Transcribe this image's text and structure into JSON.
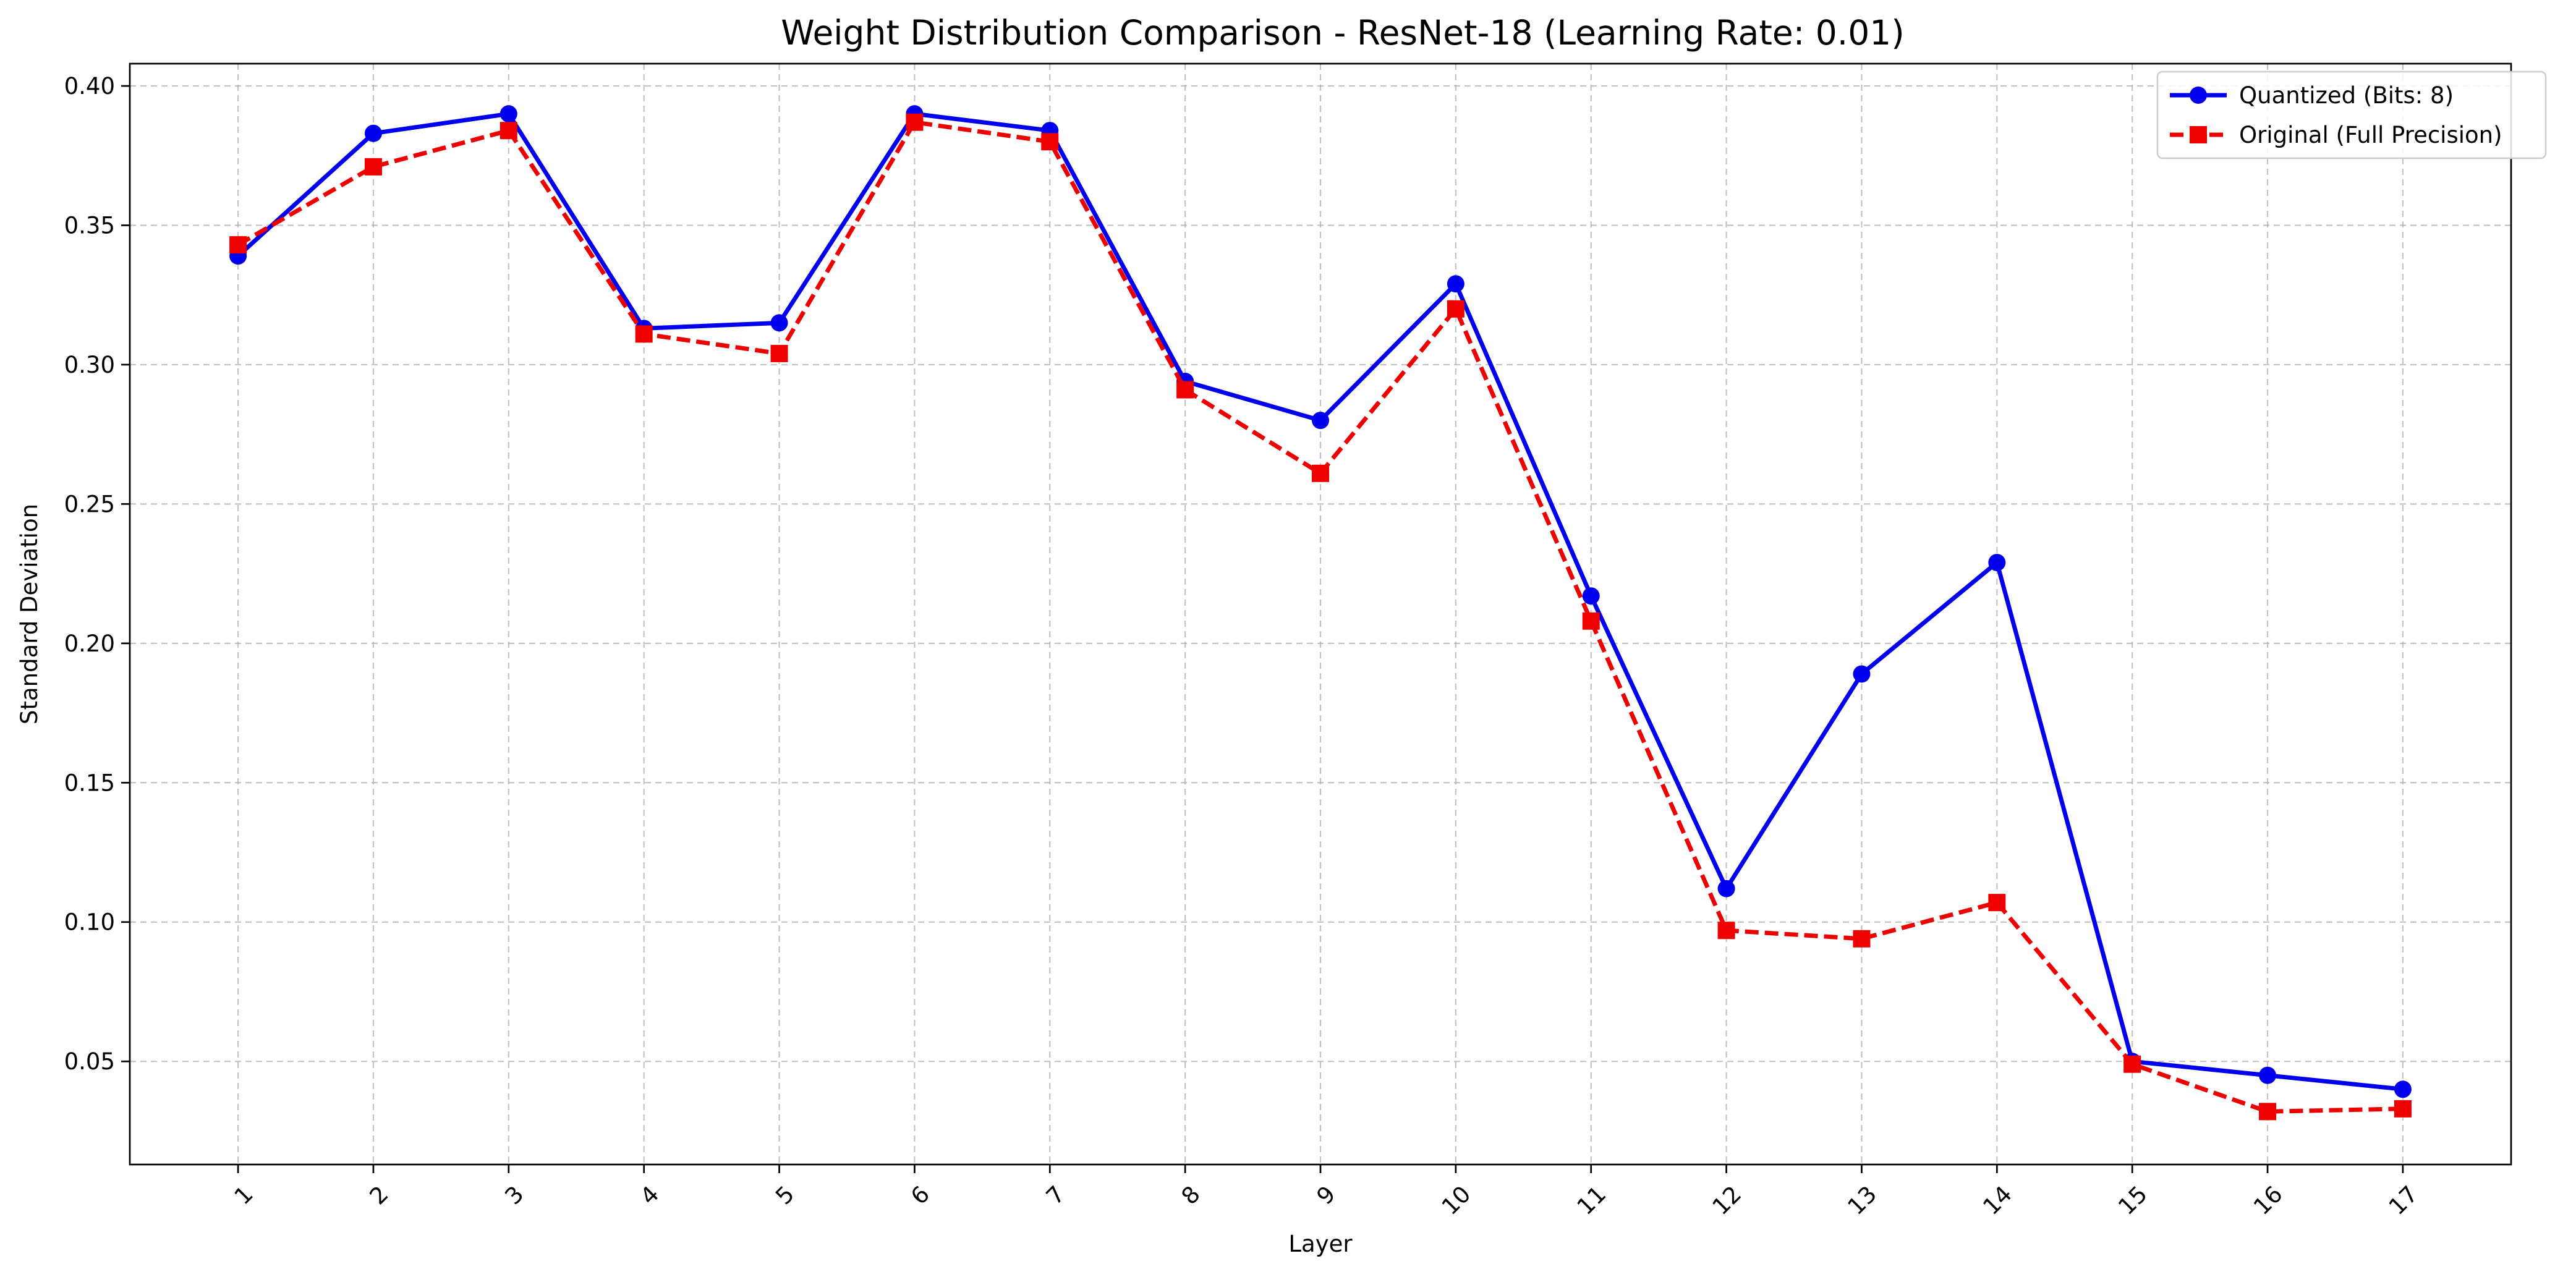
{
  "chart_data": {
    "type": "line",
    "title": "Weight Distribution Comparison - ResNet-18 (Learning Rate: 0.01)",
    "xlabel": "Layer",
    "ylabel": "Standard Deviation",
    "x": [
      1,
      2,
      3,
      4,
      5,
      6,
      7,
      8,
      9,
      10,
      11,
      12,
      13,
      14,
      15,
      16,
      17
    ],
    "x_tick_labels": [
      "1",
      "2",
      "3",
      "4",
      "5",
      "6",
      "7",
      "8",
      "9",
      "10",
      "11",
      "12",
      "13",
      "14",
      "15",
      "16",
      "17"
    ],
    "xlim": [
      0.2,
      17.8
    ],
    "ylim": [
      0.013,
      0.408
    ],
    "y_ticks": [
      0.05,
      0.1,
      0.15,
      0.2,
      0.25,
      0.3,
      0.35,
      0.4
    ],
    "y_tick_labels": [
      "0.05",
      "0.10",
      "0.15",
      "0.20",
      "0.25",
      "0.30",
      "0.35",
      "0.40"
    ],
    "grid": true,
    "legend_position": "top-right",
    "series": [
      {
        "name": "Quantized (Bits: 8)",
        "color": "#0000ee",
        "line_style": "solid",
        "marker": "circle",
        "values": [
          0.339,
          0.383,
          0.39,
          0.313,
          0.315,
          0.39,
          0.384,
          0.294,
          0.28,
          0.329,
          0.217,
          0.112,
          0.189,
          0.229,
          0.05,
          0.045,
          0.04
        ]
      },
      {
        "name": "Original (Full Precision)",
        "color": "#ee0000",
        "line_style": "dashed",
        "marker": "square",
        "values": [
          0.343,
          0.371,
          0.384,
          0.311,
          0.304,
          0.387,
          0.38,
          0.291,
          0.261,
          0.32,
          0.208,
          0.097,
          0.094,
          0.107,
          0.049,
          0.032,
          0.033
        ]
      }
    ]
  }
}
